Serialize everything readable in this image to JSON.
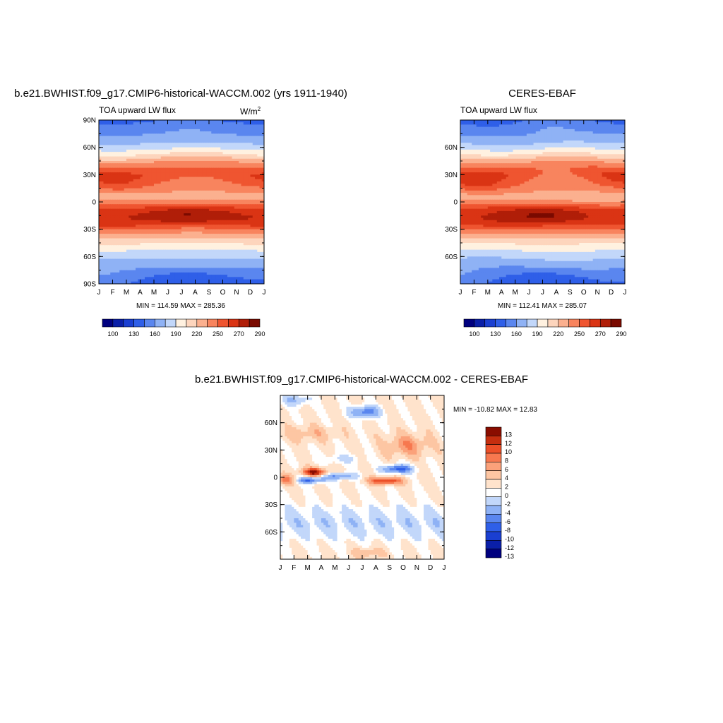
{
  "figure": {
    "colors": {
      "abs_palette": [
        "#00007f",
        "#0a1fa8",
        "#1a3fd1",
        "#2f5fe8",
        "#5a86ef",
        "#8fb2f5",
        "#c2d7fa",
        "#fff1e0",
        "#fdd5bd",
        "#fbb08f",
        "#f8845e",
        "#ef5530",
        "#da3414",
        "#b01e08",
        "#7a0a00"
      ],
      "diff_palette": [
        "#00007f",
        "#0a1fa8",
        "#1a3fd1",
        "#2f5fe8",
        "#5a86ef",
        "#8fb2f5",
        "#c2d7fa",
        "#ffffff",
        "#ffe3cc",
        "#fdc6a3",
        "#fba17a",
        "#f7784f",
        "#ec4f28",
        "#c52e0f",
        "#8a0d00"
      ]
    }
  },
  "chart_data": [
    {
      "type": "heatmap",
      "title": "b.e21.BWHIST.f09_g17.CMIP6-historical-WACCM.002 (yrs 1911-1940)",
      "subtitle_left": "TOA upward LW flux",
      "units_label": "W/m",
      "units_sup": "2",
      "x_tick_labels": [
        "J",
        "F",
        "M",
        "A",
        "M",
        "J",
        "J",
        "A",
        "S",
        "O",
        "N",
        "D",
        "J"
      ],
      "y_tick_labels": [
        "90N",
        "60N",
        "30N",
        "0",
        "30S",
        "60S",
        "90S"
      ],
      "y_tick_values": [
        90,
        60,
        30,
        0,
        -30,
        -60,
        -90
      ],
      "ylim": [
        -90,
        90
      ],
      "x_range_months": [
        0,
        12
      ],
      "min_max_text": "MIN = 114.59 MAX = 285.36",
      "min": 114.59,
      "max": 285.36,
      "colorbar_labels": [
        "100",
        "130",
        "160",
        "190",
        "220",
        "250",
        "270",
        "290"
      ],
      "colorbar_levels": [
        90,
        100,
        115,
        130,
        145,
        160,
        175,
        190,
        205,
        220,
        235,
        250,
        260,
        270,
        280,
        290
      ],
      "colorbar_orientation": "horizontal"
    },
    {
      "type": "heatmap",
      "title": "CERES-EBAF",
      "subtitle_left": "TOA upward LW flux",
      "x_tick_labels": [
        "J",
        "F",
        "M",
        "A",
        "M",
        "J",
        "J",
        "A",
        "S",
        "O",
        "N",
        "D",
        "J"
      ],
      "y_tick_labels": [
        "60N",
        "30N",
        "0",
        "30S",
        "60S"
      ],
      "y_tick_values": [
        60,
        30,
        0,
        -30,
        -60
      ],
      "ylim": [
        -90,
        90
      ],
      "x_range_months": [
        0,
        12
      ],
      "min_max_text": "MIN = 112.41 MAX = 285.07",
      "min": 112.41,
      "max": 285.07,
      "colorbar_labels": [
        "100",
        "130",
        "160",
        "190",
        "220",
        "250",
        "270",
        "290"
      ],
      "colorbar_levels": [
        90,
        100,
        115,
        130,
        145,
        160,
        175,
        190,
        205,
        220,
        235,
        250,
        260,
        270,
        280,
        290
      ],
      "colorbar_orientation": "horizontal"
    },
    {
      "type": "heatmap",
      "title": "b.e21.BWHIST.f09_g17.CMIP6-historical-WACCM.002 - CERES-EBAF",
      "x_tick_labels": [
        "J",
        "F",
        "M",
        "A",
        "M",
        "J",
        "J",
        "A",
        "S",
        "O",
        "N",
        "D",
        "J"
      ],
      "y_tick_labels": [
        "60N",
        "30N",
        "0",
        "30S",
        "60S"
      ],
      "y_tick_values": [
        60,
        30,
        0,
        -30,
        -60
      ],
      "ylim": [
        -90,
        90
      ],
      "x_range_months": [
        0,
        12
      ],
      "min_max_text": "MIN = -10.82 MAX =  12.83",
      "min": -10.82,
      "max": 12.83,
      "colorbar_labels": [
        "13",
        "12",
        "10",
        "8",
        "6",
        "4",
        "2",
        "0",
        "-2",
        "-4",
        "-6",
        "-8",
        "-10",
        "-12",
        "-13"
      ],
      "colorbar_orientation": "vertical"
    }
  ]
}
